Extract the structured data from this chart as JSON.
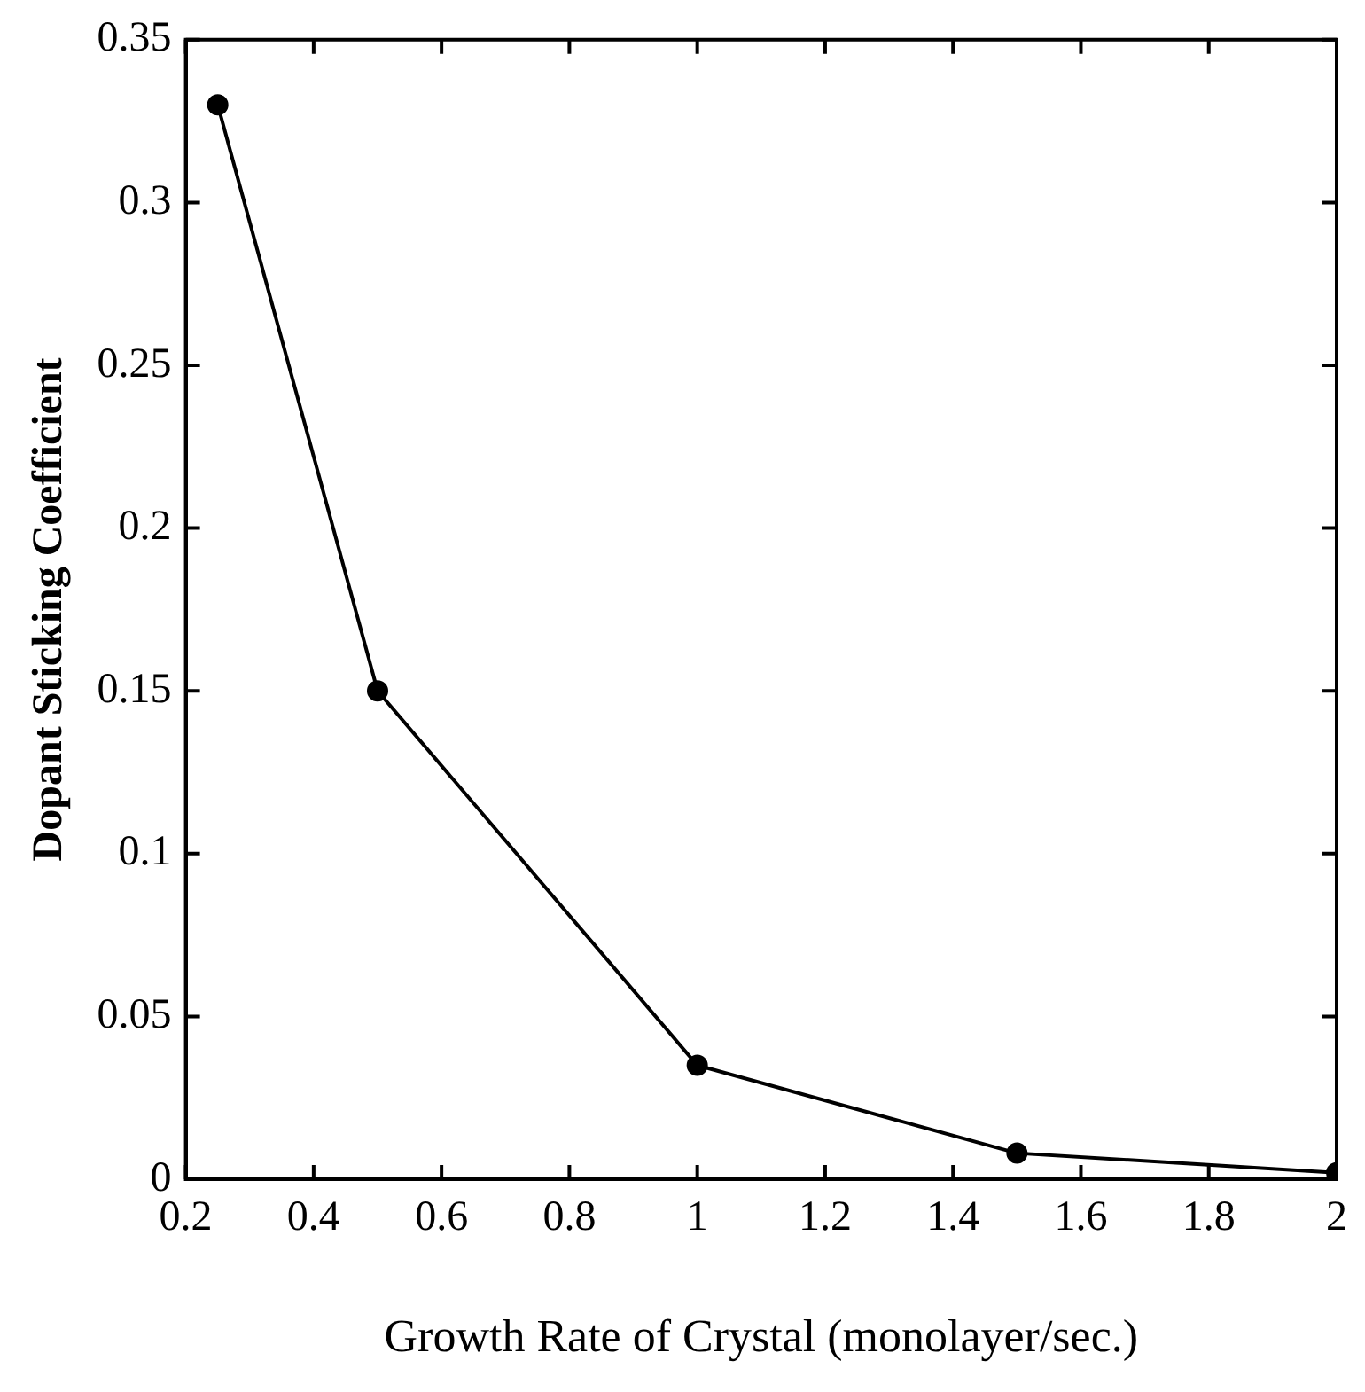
{
  "chart_data": {
    "type": "line",
    "xlabel": "Growth Rate of Crystal (monolayer/sec.)",
    "ylabel": "Dopant Sticking Coefficient",
    "x": [
      0.25,
      0.5,
      1,
      1.5,
      2
    ],
    "series": [
      {
        "color": "#000000",
        "values": [
          0.33,
          0.15,
          0.035,
          0.008,
          0.002
        ]
      }
    ],
    "xlim": [
      0.2,
      2
    ],
    "xticks": [
      0.2,
      0.4,
      0.6,
      0.8,
      1,
      1.2,
      1.4,
      1.6,
      1.8,
      2
    ],
    "ylim": [
      0,
      0.35
    ],
    "yticks": [
      0,
      0.05,
      0.1,
      0.15,
      0.2,
      0.25,
      0.3,
      0.35
    ],
    "grid": false,
    "legend": false,
    "marker": "circle",
    "line_style": "solid"
  }
}
